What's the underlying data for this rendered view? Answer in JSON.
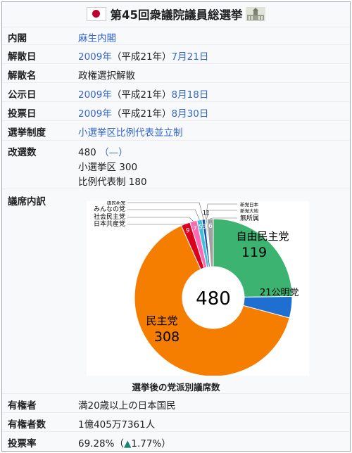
{
  "title": "第45回衆議院議員総選挙",
  "rows": {
    "cabinet": {
      "label": "内閣",
      "value": "麻生内閣"
    },
    "dissolution_date": {
      "label": "解散日",
      "year": "2009年",
      "era": "（平成21年）",
      "day": "7月21日"
    },
    "dissolution_name": {
      "label": "解散名",
      "value": "政権選択解散"
    },
    "announce_date": {
      "label": "公示日",
      "year": "2009年",
      "era": "（平成21年）",
      "day": "8月18日"
    },
    "vote_date": {
      "label": "投票日",
      "year": "2009年",
      "era": "（平成21年）",
      "day": "8月30日"
    },
    "system": {
      "label": "選挙制度",
      "value": "小選挙区比例代表並立制"
    },
    "seats": {
      "label": "改選数",
      "value": "480",
      "change": "（—）",
      "line2": "小選挙区 300",
      "line3": "比例代表制 180"
    },
    "composition": {
      "label": "議席内訳"
    },
    "voters": {
      "label": "有権者",
      "value": "満20歳以上の日本国民"
    },
    "voter_count": {
      "label": "有権者数",
      "value": "1億405万7361人"
    },
    "turnout": {
      "label": "投票率",
      "value": "69.28%",
      "paren_open": "（",
      "arrow": "▲",
      "change": "1.77%",
      "paren_close": "）"
    }
  },
  "chart_caption": "選挙後の党派別議席数",
  "chart_data": {
    "type": "pie",
    "total": 480,
    "center_label": "480",
    "series": [
      {
        "name": "自由民主党",
        "value": 119,
        "color": "#3cb371"
      },
      {
        "name": "公明党",
        "value": 21,
        "color": "#1f6fd1"
      },
      {
        "name": "民主党",
        "value": 308,
        "color": "#f57d00"
      },
      {
        "name": "日本共産党",
        "value": 9,
        "color": "#db001c"
      },
      {
        "name": "社会民主党",
        "value": 7,
        "color": "#ff69b4"
      },
      {
        "name": "みんなの党",
        "value": 5,
        "color": "#40c0e0"
      },
      {
        "name": "国民新党",
        "value": 3,
        "color": "#1e50a2"
      },
      {
        "name": "新党日本",
        "value": 1,
        "color": "#7b68ee"
      },
      {
        "name": "新党大地",
        "value": 1,
        "color": "#006400"
      },
      {
        "name": "無所属",
        "value": 6,
        "color": "#a0a0a0"
      }
    ]
  }
}
